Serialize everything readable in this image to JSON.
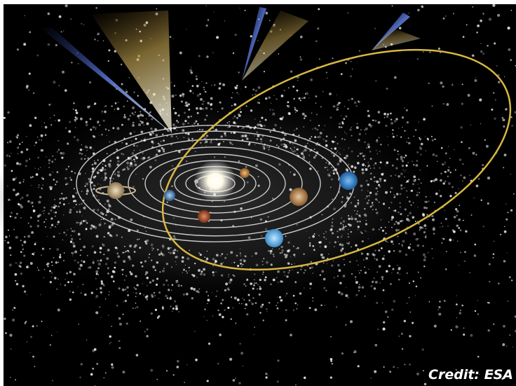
{
  "credit": "Credit: ESA"
}
